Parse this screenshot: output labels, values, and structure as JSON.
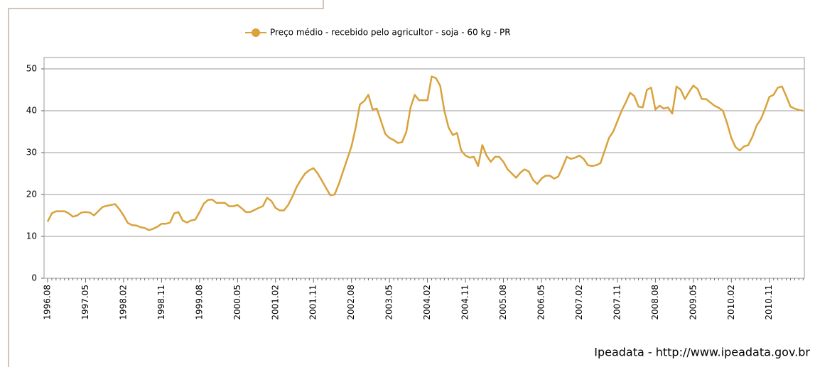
{
  "chart_data": {
    "type": "line",
    "series": [
      {
        "name": "Preço médio - recebido pelo agricultor - soja - 60 kg - PR",
        "color": "#d9a23b",
        "values": [
          13.5,
          15.5,
          16,
          16,
          16,
          15.5,
          14.7,
          15,
          15.7,
          15.8,
          15.7,
          15,
          16,
          17,
          17.3,
          17.5,
          17.7,
          16.5,
          15,
          13.2,
          12.7,
          12.6,
          12.2,
          12,
          11.5,
          11.8,
          12.3,
          13,
          13,
          13.3,
          15.5,
          15.8,
          13.8,
          13.3,
          13.8,
          14,
          15.8,
          17.8,
          18.7,
          18.8,
          18,
          18,
          18,
          17.2,
          17.2,
          17.5,
          16.7,
          15.8,
          15.8,
          16.3,
          16.8,
          17.2,
          19.2,
          18.5,
          16.8,
          16.2,
          16.2,
          17.5,
          19.5,
          21.8,
          23.5,
          25,
          25.8,
          26.3,
          25,
          23.3,
          21.5,
          19.8,
          20,
          22.5,
          25.5,
          28.5,
          31.5,
          36,
          41.5,
          42.3,
          43.8,
          40.3,
          40.5,
          37.5,
          34.5,
          33.5,
          33,
          32.3,
          32.5,
          35,
          40.8,
          43.8,
          42.5,
          42.5,
          42.5,
          48.2,
          47.8,
          46,
          40,
          36,
          34.2,
          34.7,
          30.5,
          29.3,
          28.8,
          29,
          26.8,
          31.8,
          29.3,
          27.8,
          29,
          29,
          27.8,
          26,
          25,
          24,
          25.2,
          26,
          25.5,
          23.5,
          22.5,
          23.8,
          24.5,
          24.5,
          23.8,
          24.3,
          26.5,
          29,
          28.5,
          28.8,
          29.3,
          28.5,
          27,
          26.8,
          27,
          27.5,
          30.5,
          33.5,
          35,
          37.5,
          40,
          42,
          44.3,
          43.5,
          41,
          40.8,
          45,
          45.5,
          40.3,
          41.2,
          40.5,
          40.8,
          39.3,
          45.8,
          45,
          42.8,
          44.5,
          46,
          45.2,
          42.8,
          42.8,
          42,
          41.2,
          40.7,
          40,
          37,
          33.5,
          31.3,
          30.5,
          31.5,
          31.8,
          33.8,
          36.5,
          38,
          40.5,
          43.3,
          43.8,
          45.5,
          45.8,
          43.5,
          41,
          40.5,
          40.2,
          40
        ]
      }
    ],
    "categories": [
      "1996.08",
      null,
      null,
      null,
      null,
      null,
      null,
      null,
      null,
      "1997.05",
      null,
      null,
      null,
      null,
      null,
      null,
      null,
      null,
      "1998.02",
      null,
      null,
      null,
      null,
      null,
      null,
      null,
      null,
      "1998.11",
      null,
      null,
      null,
      null,
      null,
      null,
      null,
      null,
      "1999.08",
      null,
      null,
      null,
      null,
      null,
      null,
      null,
      null,
      "2000.05",
      null,
      null,
      null,
      null,
      null,
      null,
      null,
      null,
      "2001.02",
      null,
      null,
      null,
      null,
      null,
      null,
      null,
      null,
      "2001.11",
      null,
      null,
      null,
      null,
      null,
      null,
      null,
      null,
      "2002.08",
      null,
      null,
      null,
      null,
      null,
      null,
      null,
      null,
      "2003.05",
      null,
      null,
      null,
      null,
      null,
      null,
      null,
      null,
      "2004.02",
      null,
      null,
      null,
      null,
      null,
      null,
      null,
      null,
      "2004.11",
      null,
      null,
      null,
      null,
      null,
      null,
      null,
      null,
      "2005.08",
      null,
      null,
      null,
      null,
      null,
      null,
      null,
      null,
      "2006.05",
      null,
      null,
      null,
      null,
      null,
      null,
      null,
      null,
      "2007.02",
      null,
      null,
      null,
      null,
      null,
      null,
      null,
      null,
      "2007.11",
      null,
      null,
      null,
      null,
      null,
      null,
      null,
      null,
      "2008.08",
      null,
      null,
      null,
      null,
      null,
      null,
      null,
      null,
      "2009.05",
      null,
      null,
      null,
      null,
      null,
      null,
      null,
      null,
      "2010.02",
      null,
      null,
      null,
      null,
      null,
      null,
      null,
      null,
      "2010.11",
      null,
      null,
      null,
      null,
      null,
      null,
      null,
      null
    ],
    "ylim": [
      0,
      50
    ],
    "yticks": [
      0,
      10,
      20,
      30,
      40,
      50
    ],
    "grid": true,
    "legend": "top"
  },
  "footer": "Ipeadata - http://www.ipeadata.gov.br"
}
